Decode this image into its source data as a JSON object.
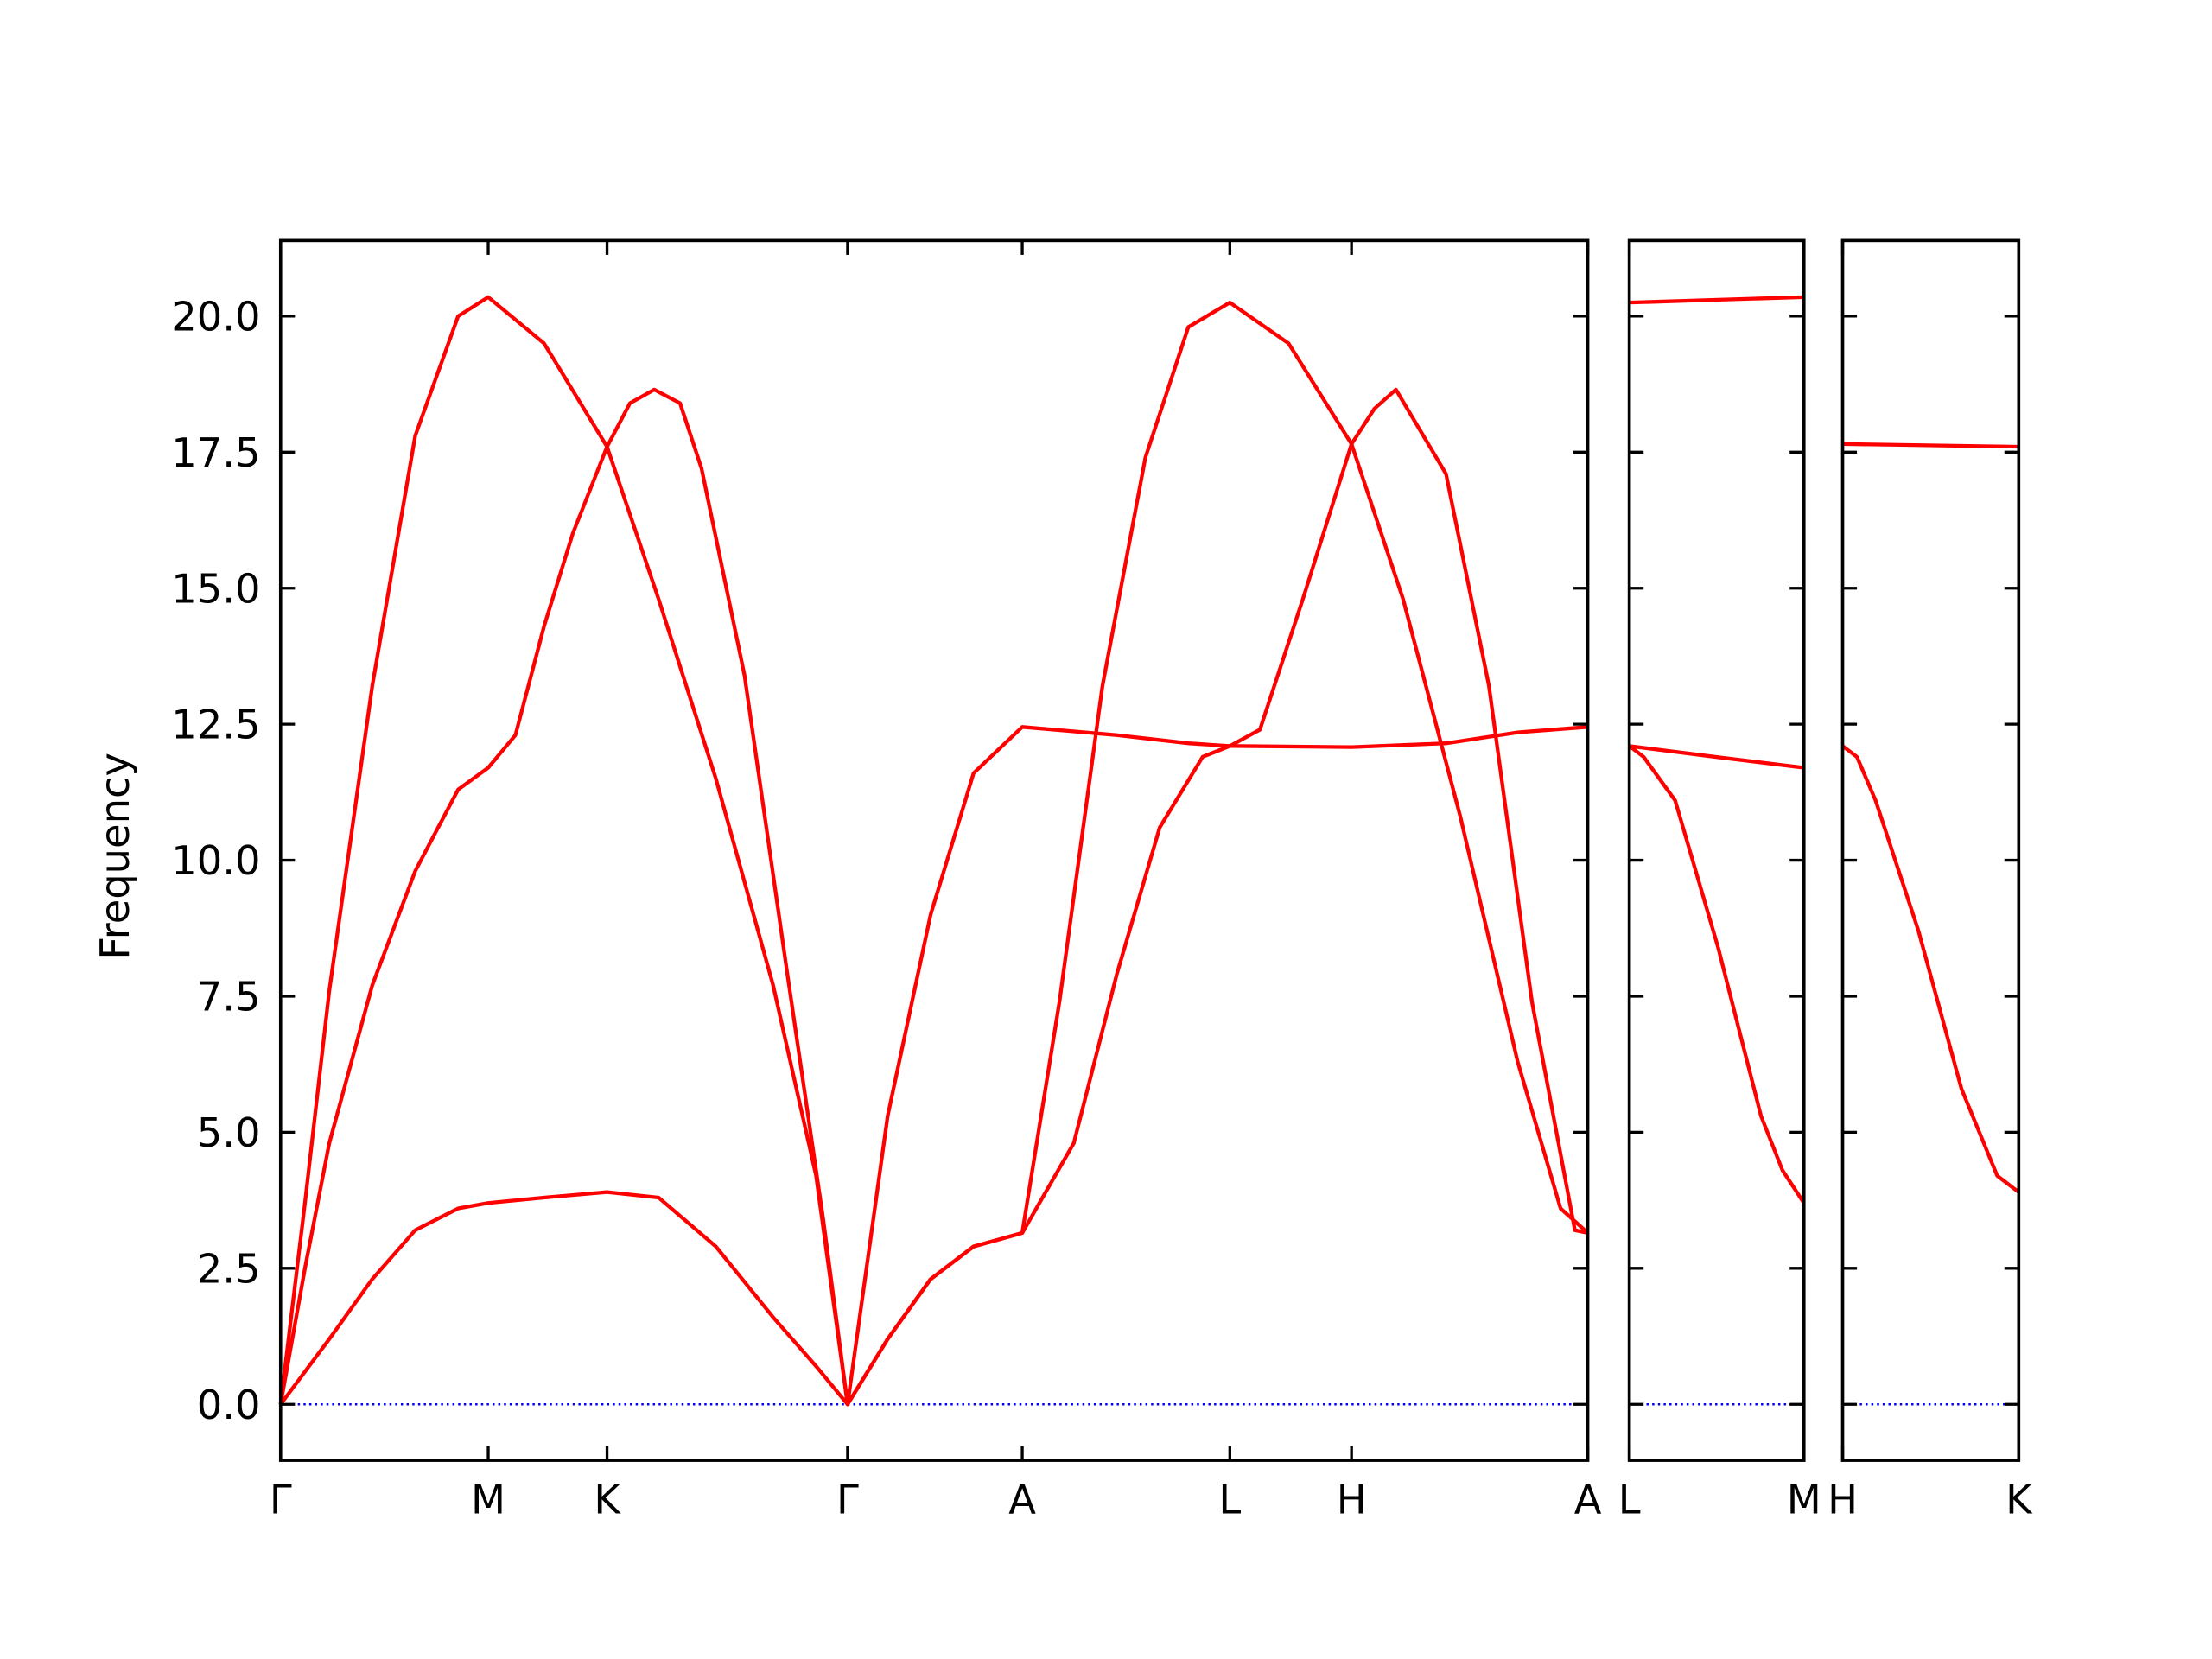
{
  "chart_data": [
    {
      "type": "line",
      "ylabel": "Frequency",
      "xlim": [
        0,
        9.13
      ],
      "xticks": [
        {
          "value": 0,
          "label": "Γ"
        },
        {
          "value": 1.45,
          "label": "M"
        },
        {
          "value": 2.28,
          "label": "K"
        },
        {
          "value": 3.96,
          "label": "Γ"
        },
        {
          "value": 5.18,
          "label": "A"
        },
        {
          "value": 6.63,
          "label": "L"
        },
        {
          "value": 7.48,
          "label": "H"
        },
        {
          "value": 9.13,
          "label": "A"
        }
      ],
      "ylim": [
        -1.03,
        21.39
      ],
      "yticks": [
        {
          "value": 0,
          "label": "0.0"
        },
        2.5,
        {
          "value": 5,
          "label": "5.0"
        },
        7.5,
        {
          "value": 10,
          "label": "10.0"
        },
        12.5,
        {
          "value": 15,
          "label": "15.0"
        },
        17.5,
        {
          "value": 20,
          "label": "20.0"
        }
      ],
      "zero_line": {
        "value": 0,
        "color": "#0000ff"
      },
      "series": [
        {
          "color": "#ff0000",
          "x": [
            0,
            0.17,
            0.34,
            0.64,
            0.94,
            1.24,
            1.45,
            1.84,
            2.28,
            2.64,
            3.04,
            3.44,
            3.74,
            3.96,
            4.24,
            4.54,
            4.84,
            5.18,
            5.84,
            6.34,
            6.63,
            7.48,
            8.14,
            8.64,
            9.13
          ],
          "values": [
            0,
            3.7,
            7.6,
            13.2,
            17.8,
            20.0,
            20.35,
            19.5,
            17.6,
            14.8,
            11.5,
            7.7,
            4.2,
            0,
            5.3,
            9.0,
            11.6,
            12.45,
            12.3,
            12.15,
            12.1,
            12.08,
            12.15,
            12.35,
            12.45
          ]
        },
        {
          "color": "#ff0000",
          "x": [
            0,
            0.17,
            0.34,
            0.64,
            0.94,
            1.24,
            1.45,
            1.64,
            1.84,
            2.04,
            2.28,
            2.44,
            2.61,
            2.79,
            2.94,
            3.24,
            3.54,
            3.79,
            3.96,
            4.24,
            4.54,
            4.84,
            5.18,
            5.44,
            5.74,
            6.04,
            6.34,
            6.63,
            7.04,
            7.48,
            7.84,
            8.24,
            8.64,
            8.94,
            9.13
          ],
          "values": [
            0,
            2.5,
            4.8,
            7.7,
            9.8,
            11.3,
            11.7,
            12.3,
            14.3,
            16.0,
            17.6,
            18.4,
            18.65,
            18.4,
            17.2,
            13.4,
            7.9,
            3.4,
            0,
            1.2,
            2.3,
            2.9,
            3.15,
            7.4,
            13.2,
            17.4,
            19.8,
            20.25,
            19.5,
            17.65,
            14.8,
            10.8,
            6.3,
            3.6,
            3.15
          ]
        },
        {
          "color": "#ff0000",
          "x": [
            0,
            0.34,
            0.64,
            0.94,
            1.24,
            1.45,
            1.84,
            2.28,
            2.64,
            3.04,
            3.44,
            3.74,
            3.96,
            4.24,
            4.54,
            4.84,
            5.18,
            5.54,
            5.84,
            6.14,
            6.44,
            6.63,
            6.84,
            7.14,
            7.48,
            7.64,
            7.79,
            8.14,
            8.44,
            8.74,
            9.04,
            9.13
          ],
          "values": [
            0,
            1.2,
            2.3,
            3.2,
            3.6,
            3.7,
            3.8,
            3.9,
            3.8,
            2.9,
            1.6,
            0.7,
            0,
            1.2,
            2.3,
            2.9,
            3.15,
            4.8,
            7.9,
            10.6,
            11.9,
            12.1,
            12.4,
            14.8,
            17.65,
            18.3,
            18.65,
            17.1,
            13.2,
            7.4,
            3.2,
            3.15
          ]
        }
      ]
    },
    {
      "type": "line",
      "sharey": true,
      "xlim": [
        0,
        1.22
      ],
      "xticks": [
        {
          "value": 0,
          "label": "L"
        },
        {
          "value": 1.22,
          "label": "M"
        }
      ],
      "zero_line": {
        "value": 0,
        "color": "#0000ff"
      },
      "series": [
        {
          "color": "#ff0000",
          "x": [
            0,
            0.6,
            1.22
          ],
          "values": [
            20.25,
            20.3,
            20.35
          ]
        },
        {
          "color": "#ff0000",
          "x": [
            0,
            0.6,
            1.22
          ],
          "values": [
            12.1,
            11.9,
            11.7
          ]
        },
        {
          "color": "#ff0000",
          "x": [
            0,
            0.1,
            0.32,
            0.62,
            0.92,
            1.07,
            1.22
          ],
          "values": [
            12.1,
            11.9,
            11.1,
            8.4,
            5.3,
            4.3,
            3.7
          ]
        }
      ]
    },
    {
      "type": "line",
      "sharey": true,
      "xlim": [
        0,
        1.23
      ],
      "xticks": [
        {
          "value": 0,
          "label": "H"
        },
        {
          "value": 1.23,
          "label": "K"
        }
      ],
      "zero_line": {
        "value": 0,
        "color": "#0000ff"
      },
      "series": [
        {
          "color": "#ff0000",
          "x": [
            0,
            1.23
          ],
          "values": [
            17.65,
            17.6
          ]
        },
        {
          "color": "#ff0000",
          "x": [
            0,
            0.1,
            0.23,
            0.53,
            0.83,
            1.08,
            1.23
          ],
          "values": [
            12.1,
            11.9,
            11.1,
            8.7,
            5.8,
            4.2,
            3.9
          ]
        }
      ]
    }
  ]
}
